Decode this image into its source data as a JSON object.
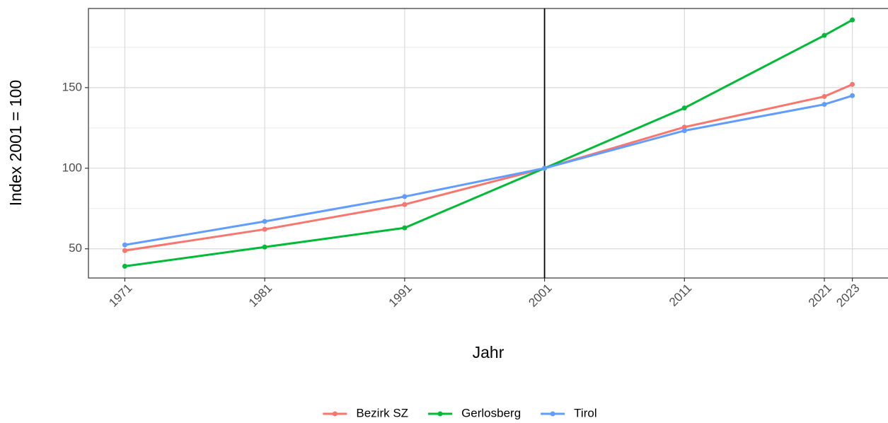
{
  "chart_data": {
    "type": "line",
    "x_label": "Jahr",
    "y_label": "Index 2001 = 100",
    "x": [
      1971,
      1981,
      1991,
      2001,
      2011,
      2021,
      2023
    ],
    "series": [
      {
        "name": "Bezirk SZ",
        "color": "#F8766D",
        "values": [
          48.9,
          62.1,
          77.5,
          100,
          125.5,
          144.5,
          152
        ]
      },
      {
        "name": "Gerlosberg",
        "color": "#00BA38",
        "values": [
          39.2,
          51.1,
          63,
          100,
          137.4,
          182.4,
          192
        ]
      },
      {
        "name": "Tirol",
        "color": "#619CFF",
        "values": [
          52.4,
          67,
          82.4,
          100,
          123.3,
          139.6,
          145
        ]
      }
    ],
    "xlim": [
      1968.4,
      2025.6
    ],
    "xticks": [
      1971,
      1981,
      1991,
      2001,
      2011,
      2021,
      2023
    ],
    "ylim": [
      31.9,
      199.1
    ],
    "yticks": [
      50,
      100,
      150
    ],
    "yminor": [
      75,
      125,
      175
    ],
    "vline": 2001,
    "grid": true,
    "legend": "bottom"
  }
}
